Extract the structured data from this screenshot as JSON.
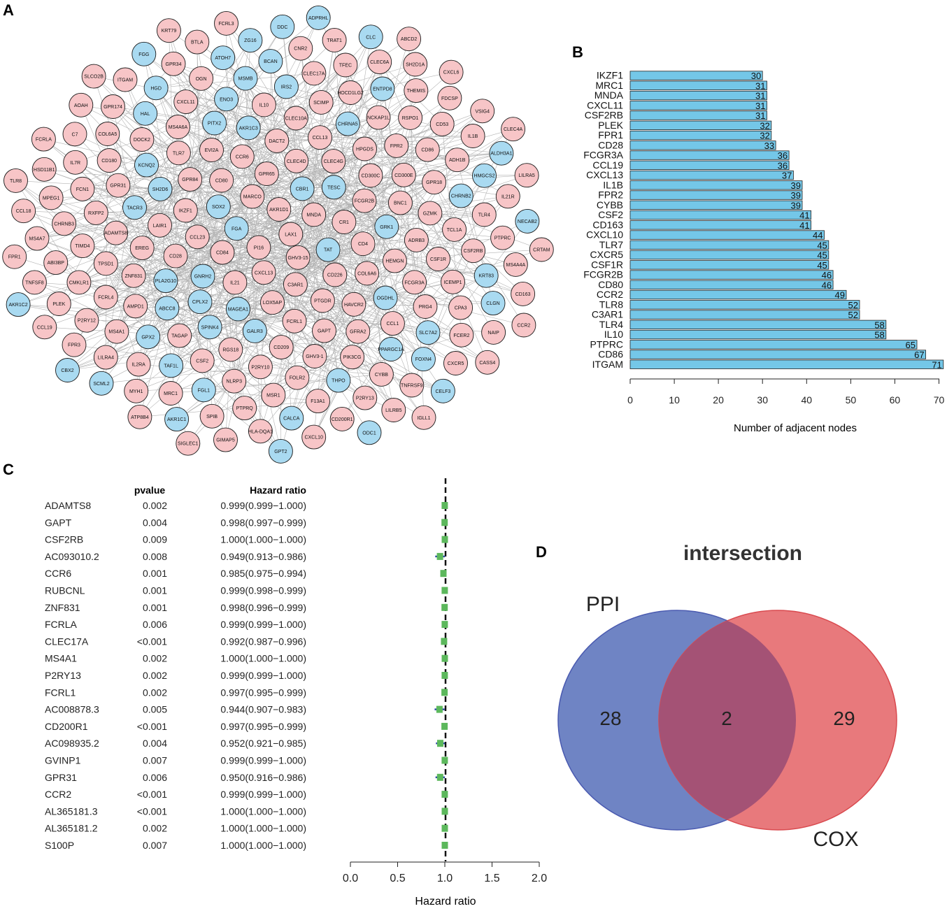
{
  "colors": {
    "node_pink": "#f7c5c7",
    "node_blue": "#a9daf1",
    "bar_fill": "#74c7e8",
    "forest_green": "#5cb85c",
    "venn_blue": "#6f84c4",
    "venn_red": "#e8797c",
    "venn_overlap": "#a45275",
    "edge": "#9a9a9a"
  },
  "panels": {
    "a": "A",
    "b": "B",
    "c": "C",
    "d": "D"
  },
  "network": {
    "nodes_pink": [
      "ABCD2",
      "RSPO1",
      "ADAMTS8",
      "CCL23",
      "AMPD1",
      "DACT2",
      "LAX1",
      "CCL1",
      "CXCR5",
      "TRAT1",
      "ATP8B4",
      "RXFP2",
      "PTGDR",
      "ADRB3",
      "CHRNB3",
      "ADH1B",
      "TPSD1",
      "CPA3",
      "GPR31",
      "TLR4",
      "C3AR1",
      "GPR18",
      "CXCL11",
      "CCL19",
      "HAVCR2",
      "CLEC6A",
      "SH2D1A",
      "CLEC4D",
      "GPR65",
      "HPGDS",
      "MSR1",
      "FDCSP",
      "CXCL13",
      "P2RY13",
      "CNR2",
      "NLRP3",
      "FPR2",
      "CD226",
      "MARCO",
      "CD28",
      "IL21",
      "GPR84",
      "GFRA2",
      "KRT79",
      "SCIMP",
      "FPR3",
      "P2RY12",
      "CXCL6",
      "CD4",
      "IL1B",
      "IL2RA",
      "BTLA",
      "TNFSF8",
      "OGN",
      "MYH1",
      "GPR34",
      "CSF2",
      "TCL1A",
      "CXCL10",
      "CSF1R",
      "CCR2",
      "CD209",
      "PLEK",
      "FCGR3A",
      "SPIB",
      "IL10",
      "PTPRC",
      "TLR8",
      "HOCD1LG2",
      "HLA-DQA1",
      "FCER2",
      "LAIR1",
      "ABI3BP",
      "FPR1",
      "NAIP",
      "CMKLR1",
      "CCL13",
      "CCR6",
      "TFEC",
      "MPEG1",
      "CD200R1",
      "MNDA",
      "DOCK2",
      "ITGAM",
      "CD86",
      "PIK3CG",
      "ICEMP1",
      "AKR1D1",
      "PRG4",
      "FCRLA",
      "TNFRSF9",
      "CD80",
      "CR1",
      "MS4A4A",
      "TLR7",
      "CD163",
      "IL7R",
      "FCGR2B",
      "CD84",
      "MS4A1",
      "CYBB",
      "P2RY10",
      "FCRL4",
      "PTPRQ",
      "IL21R",
      "CCL18",
      "FCN1",
      "FOLR2",
      "LOX5AP",
      "CLEC4A",
      "CD300C",
      "RGS18",
      "CSF2RB",
      "CD53",
      "EVI2A",
      "CLEC4G",
      "GAPT",
      "MS4A6A",
      "VSIG4",
      "CD180",
      "TIMD4",
      "F13A1",
      "TAGAP",
      "HSD11B1",
      "GPR174",
      "COL6A5",
      "SLCO2B",
      "GIMAP5",
      "CLEC17A",
      "MRC1",
      "CLEC10A",
      "LILRA5",
      "LILRA4",
      "NCKAP1L",
      "IKZF1",
      "FCRL3",
      "CRTAM",
      "COL6A6",
      "CASS4",
      "HEMGN",
      "GHV3-1",
      "GZMK",
      "THEMIS",
      "FCRL1",
      "PI16",
      "C7",
      "BNC1",
      "MS4A7",
      "LILRB5",
      "AOAH",
      "SIGLEC1",
      "ZNF831",
      "IGLL1",
      "GHV3-15",
      "CD300E",
      "EREG"
    ],
    "nodes_blue": [
      "GRK1",
      "FOXN4",
      "HMGCS2",
      "CHRNA5",
      "SLC7A2",
      "GPT2",
      "OGDHL",
      "FGL1",
      "DDC",
      "CELF3",
      "PPARGC1A",
      "BCAN",
      "SPINK4",
      "SH2D6",
      "ATOH7",
      "FGG",
      "HGD",
      "SOX2",
      "TAT",
      "ODC1",
      "ZG16",
      "THPO",
      "KCNQ2",
      "PITX2",
      "HAL",
      "FGA",
      "GNRH2",
      "CPLX2",
      "TACR3",
      "CALCA",
      "ALDH3A1",
      "CHRNB2",
      "KRT83",
      "ENTPD8",
      "MAGEA1",
      "PLA2G10",
      "AKR1C2",
      "ABCC8",
      "GALR3",
      "AKR1C3",
      "ENO3",
      "AKR1C1",
      "IRS2",
      "CBR1",
      "GPX2",
      "CLC",
      "ADPRHL",
      "SCML2",
      "CBX2",
      "TAF1L",
      "CLGN",
      "NECAB2",
      "TESC",
      "MSMB"
    ]
  },
  "bar_chart": {
    "type": "bar",
    "orientation": "horizontal",
    "categories": [
      "IKZF1",
      "MRC1",
      "MNDA",
      "CXCL11",
      "CSF2RB",
      "PLEK",
      "FPR1",
      "CD28",
      "FCGR3A",
      "CCL19",
      "CXCL13",
      "IL1B",
      "FPR2",
      "CYBB",
      "CSF2",
      "CD163",
      "CXCL10",
      "TLR7",
      "CXCR5",
      "CSF1R",
      "FCGR2B",
      "CD80",
      "CCR2",
      "TLR8",
      "C3AR1",
      "TLR4",
      "IL10",
      "PTPRC",
      "CD86",
      "ITGAM"
    ],
    "values": [
      30,
      31,
      31,
      31,
      31,
      32,
      32,
      33,
      36,
      36,
      37,
      39,
      39,
      39,
      41,
      41,
      44,
      45,
      45,
      45,
      46,
      46,
      49,
      52,
      52,
      58,
      58,
      65,
      67,
      71
    ],
    "xlabel": "Number of adjacent nodes",
    "xticks": [
      "0",
      "10",
      "20",
      "30",
      "40",
      "50",
      "60",
      "70"
    ],
    "xlim": [
      0,
      70
    ]
  },
  "forest": {
    "type": "forest",
    "header_pvalue": "pvalue",
    "header_hr": "Hazard ratio",
    "xlabel": "Hazard ratio",
    "xticks": [
      "0.0",
      "0.5",
      "1.0",
      "1.5",
      "2.0"
    ],
    "xlim": [
      0,
      2
    ],
    "rows": [
      {
        "gene": "ADAMTS8",
        "p": "0.002",
        "hr_text": "0.999(0.999−1.000)",
        "hr": 0.999,
        "lo": 0.999,
        "hi": 1.0
      },
      {
        "gene": "GAPT",
        "p": "0.004",
        "hr_text": "0.998(0.997−0.999)",
        "hr": 0.998,
        "lo": 0.997,
        "hi": 0.999
      },
      {
        "gene": "CSF2RB",
        "p": "0.009",
        "hr_text": "1.000(1.000−1.000)",
        "hr": 1.0,
        "lo": 1.0,
        "hi": 1.0
      },
      {
        "gene": "AC093010.2",
        "p": "0.008",
        "hr_text": "0.949(0.913−0.986)",
        "hr": 0.949,
        "lo": 0.913,
        "hi": 0.986
      },
      {
        "gene": "CCR6",
        "p": "0.001",
        "hr_text": "0.985(0.975−0.994)",
        "hr": 0.985,
        "lo": 0.975,
        "hi": 0.994
      },
      {
        "gene": "RUBCNL",
        "p": "0.001",
        "hr_text": "0.999(0.998−0.999)",
        "hr": 0.999,
        "lo": 0.998,
        "hi": 0.999
      },
      {
        "gene": "ZNF831",
        "p": "0.001",
        "hr_text": "0.998(0.996−0.999)",
        "hr": 0.998,
        "lo": 0.996,
        "hi": 0.999
      },
      {
        "gene": "FCRLA",
        "p": "0.006",
        "hr_text": "0.999(0.999−1.000)",
        "hr": 0.999,
        "lo": 0.999,
        "hi": 1.0
      },
      {
        "gene": "CLEC17A",
        "p": "<0.001",
        "hr_text": "0.992(0.987−0.996)",
        "hr": 0.992,
        "lo": 0.987,
        "hi": 0.996
      },
      {
        "gene": "MS4A1",
        "p": "0.002",
        "hr_text": "1.000(1.000−1.000)",
        "hr": 1.0,
        "lo": 1.0,
        "hi": 1.0
      },
      {
        "gene": "P2RY13",
        "p": "0.002",
        "hr_text": "0.999(0.999−1.000)",
        "hr": 0.999,
        "lo": 0.999,
        "hi": 1.0
      },
      {
        "gene": "FCRL1",
        "p": "0.002",
        "hr_text": "0.997(0.995−0.999)",
        "hr": 0.997,
        "lo": 0.995,
        "hi": 0.999
      },
      {
        "gene": "AC008878.3",
        "p": "0.005",
        "hr_text": "0.944(0.907−0.983)",
        "hr": 0.944,
        "lo": 0.907,
        "hi": 0.983
      },
      {
        "gene": "CD200R1",
        "p": "<0.001",
        "hr_text": "0.997(0.995−0.999)",
        "hr": 0.997,
        "lo": 0.995,
        "hi": 0.999
      },
      {
        "gene": "AC098935.2",
        "p": "0.004",
        "hr_text": "0.952(0.921−0.985)",
        "hr": 0.952,
        "lo": 0.921,
        "hi": 0.985
      },
      {
        "gene": "GVINP1",
        "p": "0.007",
        "hr_text": "0.999(0.999−1.000)",
        "hr": 0.999,
        "lo": 0.999,
        "hi": 1.0
      },
      {
        "gene": "GPR31",
        "p": "0.006",
        "hr_text": "0.950(0.916−0.986)",
        "hr": 0.95,
        "lo": 0.916,
        "hi": 0.986
      },
      {
        "gene": "CCR2",
        "p": "<0.001",
        "hr_text": "0.999(0.999−1.000)",
        "hr": 0.999,
        "lo": 0.999,
        "hi": 1.0
      },
      {
        "gene": "AL365181.3",
        "p": "<0.001",
        "hr_text": "1.000(1.000−1.000)",
        "hr": 1.0,
        "lo": 1.0,
        "hi": 1.0
      },
      {
        "gene": "AL365181.2",
        "p": "0.002",
        "hr_text": "1.000(1.000−1.000)",
        "hr": 1.0,
        "lo": 1.0,
        "hi": 1.0
      },
      {
        "gene": "S100P",
        "p": "0.007",
        "hr_text": "1.000(1.000−1.000)",
        "hr": 1.0,
        "lo": 1.0,
        "hi": 1.0
      }
    ]
  },
  "venn": {
    "title": "intersection",
    "left_label": "PPI",
    "right_label": "COX",
    "left_only": "28",
    "overlap": "2",
    "right_only": "29"
  },
  "chart_data": [
    {
      "type": "bar",
      "title": "",
      "categories": [
        "IKZF1",
        "MRC1",
        "MNDA",
        "CXCL11",
        "CSF2RB",
        "PLEK",
        "FPR1",
        "CD28",
        "FCGR3A",
        "CCL19",
        "CXCL13",
        "IL1B",
        "FPR2",
        "CYBB",
        "CSF2",
        "CD163",
        "CXCL10",
        "TLR7",
        "CXCR5",
        "CSF1R",
        "FCGR2B",
        "CD80",
        "CCR2",
        "TLR8",
        "C3AR1",
        "TLR4",
        "IL10",
        "PTPRC",
        "CD86",
        "ITGAM"
      ],
      "values": [
        30,
        31,
        31,
        31,
        31,
        32,
        32,
        33,
        36,
        36,
        37,
        39,
        39,
        39,
        41,
        41,
        44,
        45,
        45,
        45,
        46,
        46,
        49,
        52,
        52,
        58,
        58,
        65,
        67,
        71
      ],
      "xlabel": "Number of adjacent nodes",
      "xlim": [
        0,
        70
      ]
    },
    {
      "type": "forest",
      "xlabel": "Hazard ratio",
      "xlim": [
        0,
        2
      ],
      "reference_line": 1
    },
    {
      "type": "venn",
      "title": "intersection",
      "sets": [
        "PPI",
        "COX"
      ],
      "values": {
        "PPI_only": 28,
        "both": 2,
        "COX_only": 29
      }
    }
  ]
}
